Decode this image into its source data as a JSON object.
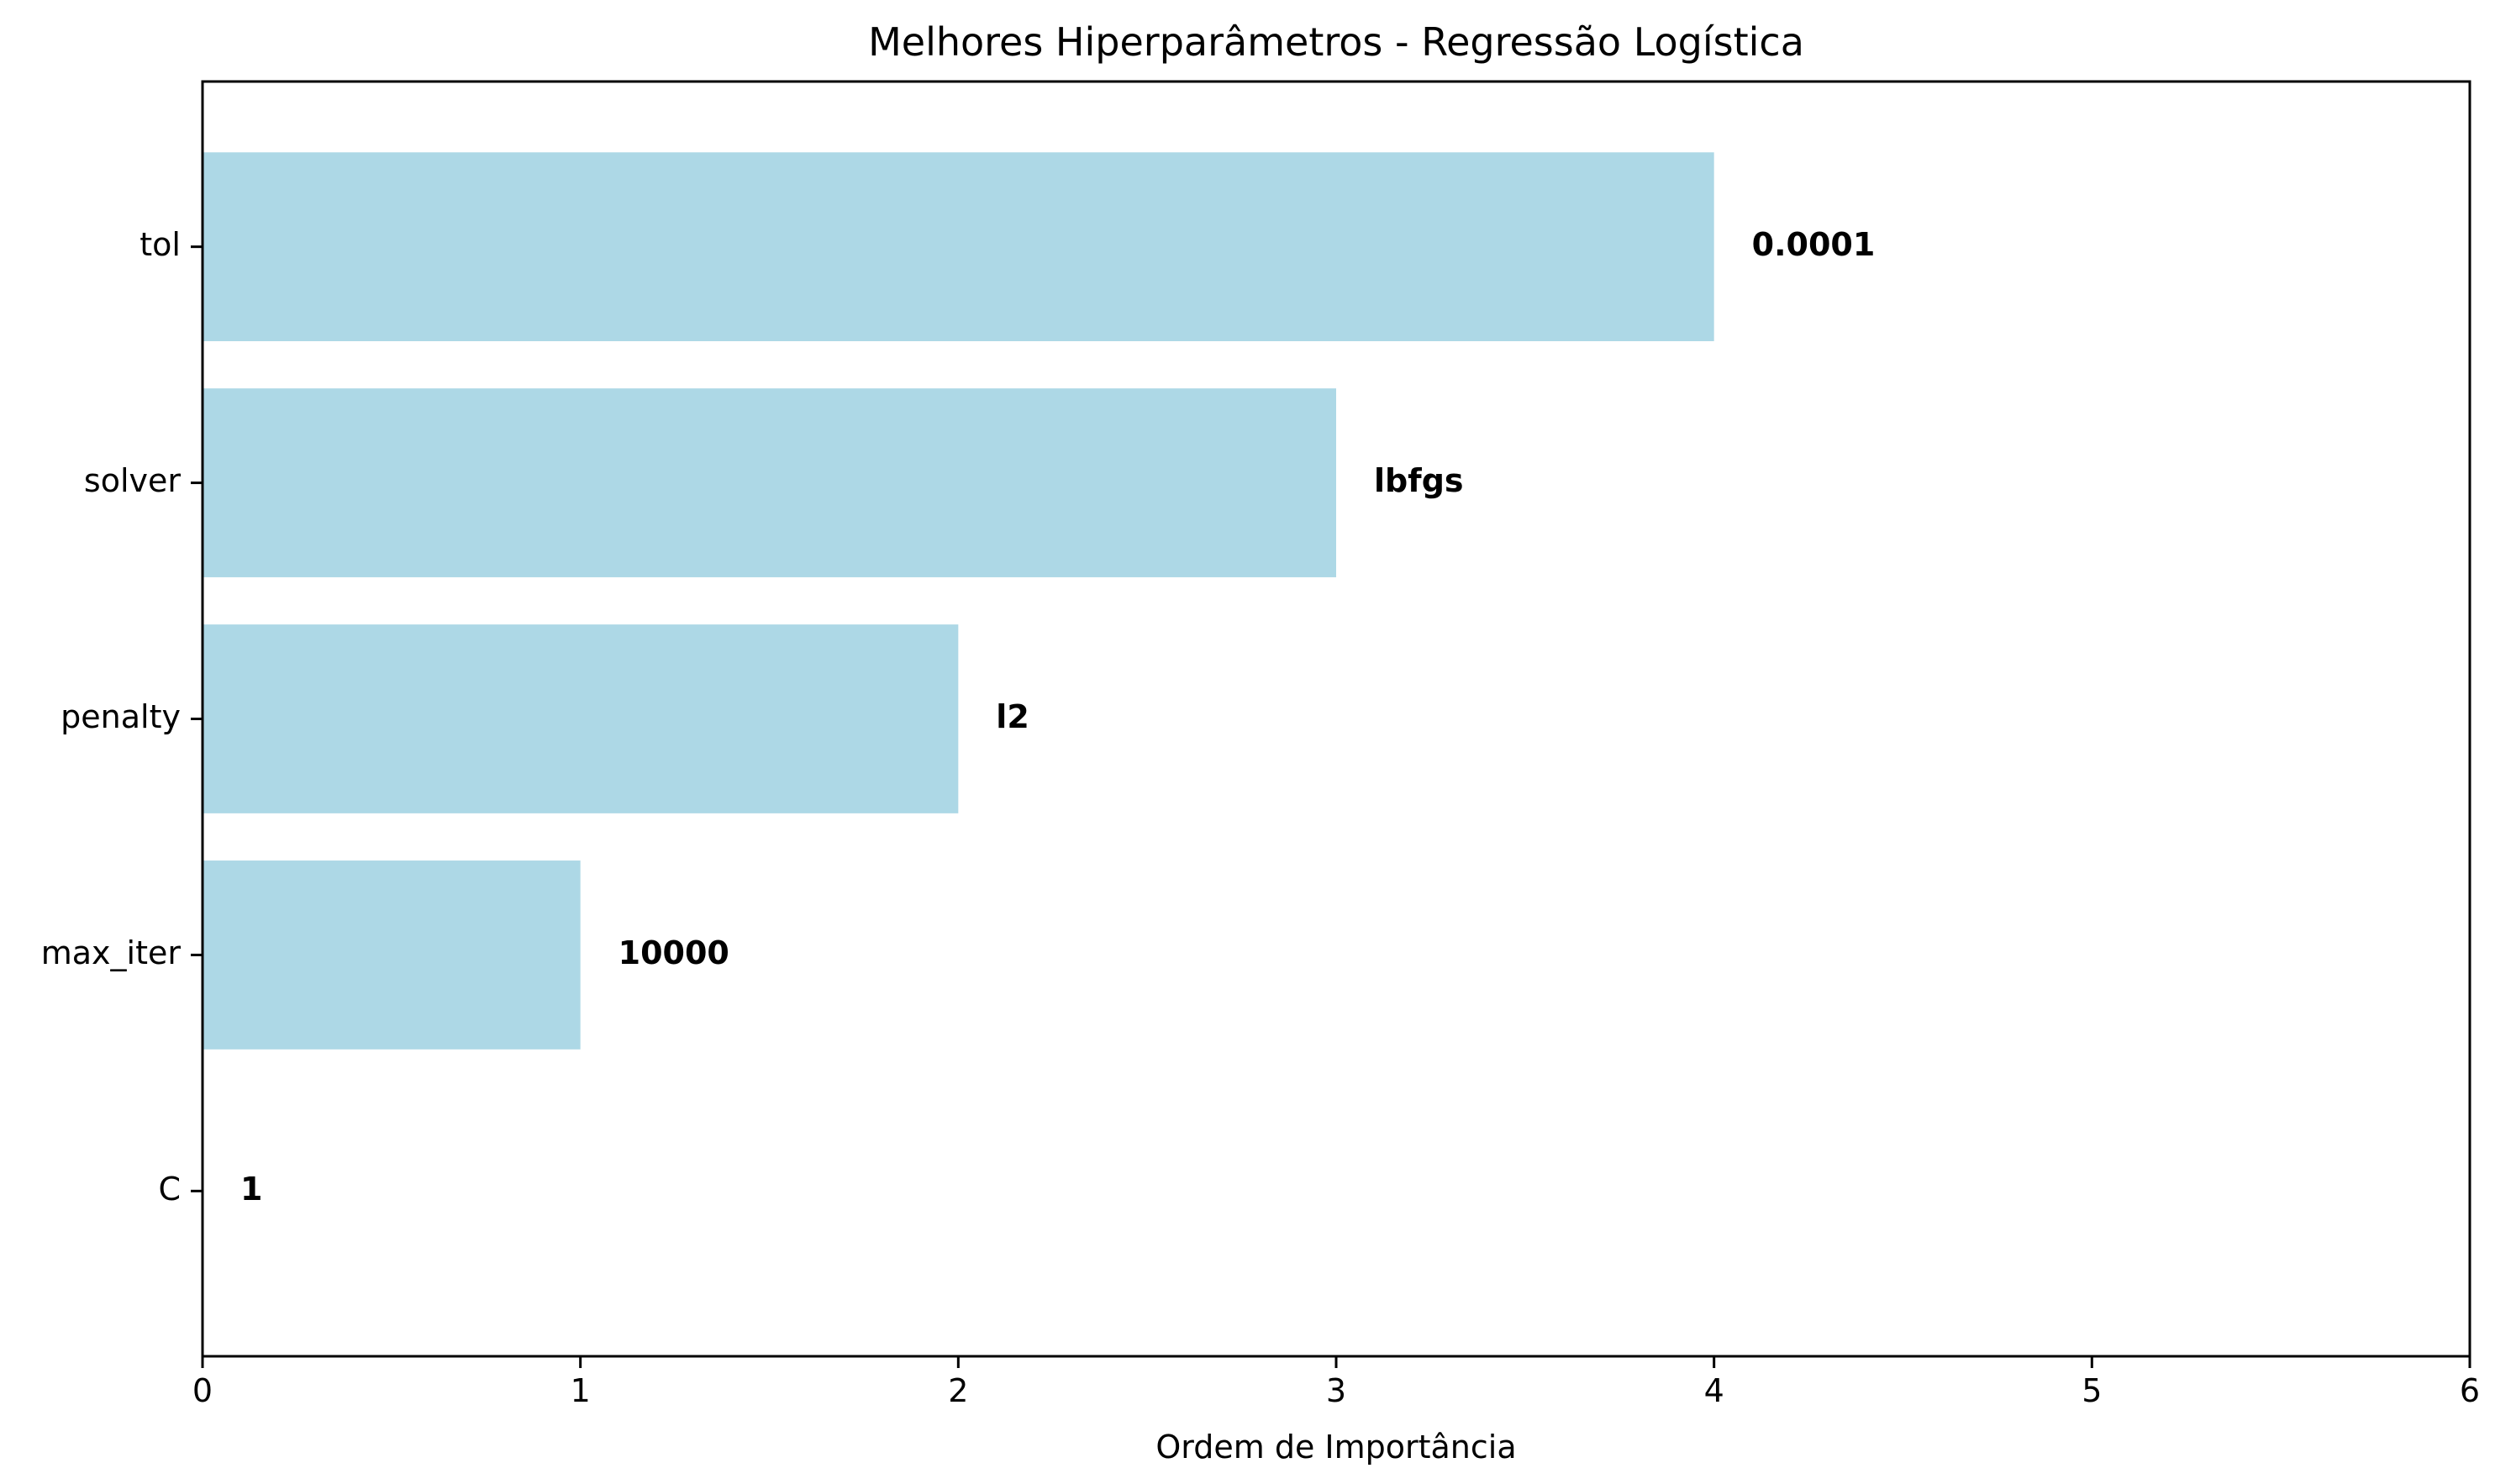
{
  "chart_data": {
    "type": "bar",
    "orientation": "horizontal",
    "title": "Melhores Hiperparâmetros - Regressão Logística",
    "xlabel": "Ordem de Importância",
    "ylabel": "",
    "categories": [
      "C",
      "max_iter",
      "penalty",
      "solver",
      "tol"
    ],
    "values": [
      0,
      1,
      2,
      3,
      4
    ],
    "data_labels": [
      "1",
      "10000",
      "l2",
      "lbfgs",
      "0.0001"
    ],
    "xlim": [
      0,
      6
    ],
    "xticks": [
      "0",
      "1",
      "2",
      "3",
      "4",
      "5",
      "6"
    ],
    "grid": false,
    "bar_color": "#add8e6"
  }
}
